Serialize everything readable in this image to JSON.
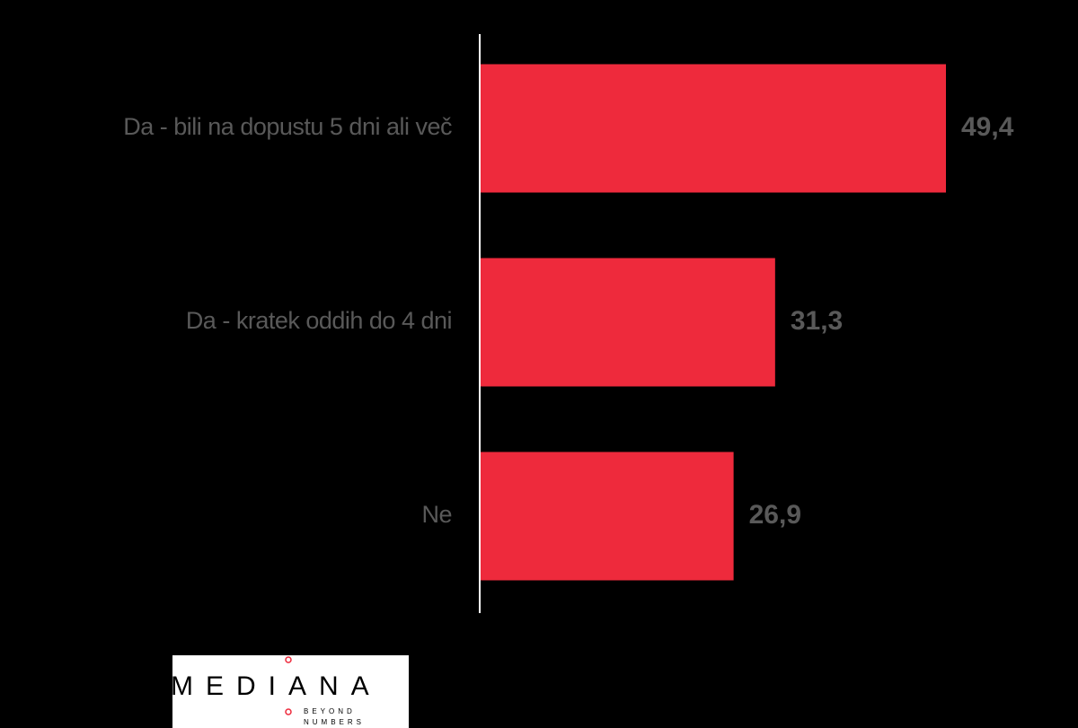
{
  "chart_data": {
    "type": "bar",
    "orientation": "horizontal",
    "categories": [
      "Da - bili na dopustu 5 dni ali več",
      "Da - kratek oddih do 4 dni",
      "Ne"
    ],
    "values": [
      49.4,
      31.3,
      26.9
    ],
    "value_labels": [
      "49,4",
      "31,3",
      "26,9"
    ],
    "color": "#ee2a3c"
  },
  "logo": {
    "name": "MEDIANA",
    "tagline": [
      "BEYOND",
      "NUMBERS"
    ]
  }
}
